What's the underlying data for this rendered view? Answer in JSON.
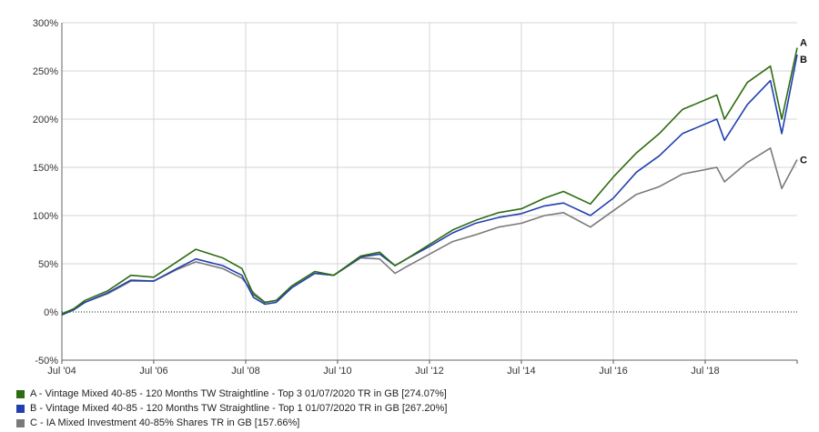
{
  "chart_data": {
    "type": "line",
    "title": "",
    "xlabel": "",
    "ylabel": "",
    "x_tick_labels": [
      "Jul '04",
      "Jul '06",
      "Jul '08",
      "Jul '10",
      "Jul '12",
      "Jul '14",
      "Jul '16",
      "Jul '18"
    ],
    "x_range": [
      "2004-07-01",
      "2020-07-01"
    ],
    "y_tick_labels": [
      "300%",
      "250%",
      "200%",
      "150%",
      "100%",
      "50%",
      "0%",
      "-50%"
    ],
    "ylim": [
      -50,
      300
    ],
    "grid": true,
    "zero_line": "dotted",
    "legend_position": "bottom-left",
    "series": [
      {
        "name": "A - Vintage Mixed 40-85 - 120 Months TW Straightline - Top 3 01/07/2020 TR in GB [274.07%]",
        "end_label": "A",
        "color": "#2e6b12",
        "points": [
          [
            "2004-07-01",
            -2
          ],
          [
            "2004-10-01",
            3
          ],
          [
            "2005-01-01",
            12
          ],
          [
            "2005-07-01",
            22
          ],
          [
            "2006-01-01",
            38
          ],
          [
            "2006-07-01",
            36
          ],
          [
            "2007-01-01",
            52
          ],
          [
            "2007-06-01",
            65
          ],
          [
            "2008-01-01",
            56
          ],
          [
            "2008-06-01",
            45
          ],
          [
            "2008-09-01",
            18
          ],
          [
            "2008-12-01",
            10
          ],
          [
            "2009-03-01",
            12
          ],
          [
            "2009-07-01",
            27
          ],
          [
            "2010-01-01",
            42
          ],
          [
            "2010-06-01",
            38
          ],
          [
            "2011-01-01",
            58
          ],
          [
            "2011-06-01",
            62
          ],
          [
            "2011-10-01",
            48
          ],
          [
            "2012-01-01",
            55
          ],
          [
            "2012-07-01",
            70
          ],
          [
            "2013-01-01",
            85
          ],
          [
            "2013-07-01",
            95
          ],
          [
            "2014-01-01",
            103
          ],
          [
            "2014-07-01",
            107
          ],
          [
            "2015-01-01",
            118
          ],
          [
            "2015-06-01",
            125
          ],
          [
            "2016-01-01",
            112
          ],
          [
            "2016-07-01",
            140
          ],
          [
            "2017-01-01",
            165
          ],
          [
            "2017-07-01",
            185
          ],
          [
            "2018-01-01",
            210
          ],
          [
            "2018-10-01",
            225
          ],
          [
            "2018-12-01",
            200
          ],
          [
            "2019-06-01",
            238
          ],
          [
            "2019-12-01",
            255
          ],
          [
            "2020-03-01",
            200
          ],
          [
            "2020-07-01",
            274
          ]
        ]
      },
      {
        "name": "B - Vintage Mixed 40-85 - 120 Months TW Straightline - Top 1 01/07/2020 TR in GB [267.20%]",
        "end_label": "B",
        "color": "#2040b0",
        "points": [
          [
            "2004-07-01",
            -3
          ],
          [
            "2004-10-01",
            2
          ],
          [
            "2005-01-01",
            10
          ],
          [
            "2005-07-01",
            20
          ],
          [
            "2006-01-01",
            33
          ],
          [
            "2006-07-01",
            32
          ],
          [
            "2007-01-01",
            45
          ],
          [
            "2007-06-01",
            55
          ],
          [
            "2008-01-01",
            48
          ],
          [
            "2008-06-01",
            38
          ],
          [
            "2008-09-01",
            15
          ],
          [
            "2008-12-01",
            8
          ],
          [
            "2009-03-01",
            10
          ],
          [
            "2009-07-01",
            25
          ],
          [
            "2010-01-01",
            40
          ],
          [
            "2010-06-01",
            38
          ],
          [
            "2011-01-01",
            57
          ],
          [
            "2011-06-01",
            60
          ],
          [
            "2011-10-01",
            48
          ],
          [
            "2012-01-01",
            55
          ],
          [
            "2012-07-01",
            68
          ],
          [
            "2013-01-01",
            82
          ],
          [
            "2013-07-01",
            92
          ],
          [
            "2014-01-01",
            98
          ],
          [
            "2014-07-01",
            102
          ],
          [
            "2015-01-01",
            110
          ],
          [
            "2015-06-01",
            113
          ],
          [
            "2016-01-01",
            100
          ],
          [
            "2016-07-01",
            118
          ],
          [
            "2017-01-01",
            145
          ],
          [
            "2017-07-01",
            162
          ],
          [
            "2018-01-01",
            185
          ],
          [
            "2018-10-01",
            200
          ],
          [
            "2018-12-01",
            178
          ],
          [
            "2019-06-01",
            215
          ],
          [
            "2019-12-01",
            240
          ],
          [
            "2020-03-01",
            185
          ],
          [
            "2020-07-01",
            267
          ]
        ]
      },
      {
        "name": "C - IA Mixed Investment 40-85% Shares TR in GB [157.66%]",
        "end_label": "C",
        "color": "#7a7a7a",
        "points": [
          [
            "2004-07-01",
            -2
          ],
          [
            "2004-10-01",
            3
          ],
          [
            "2005-01-01",
            10
          ],
          [
            "2005-07-01",
            19
          ],
          [
            "2006-01-01",
            32
          ],
          [
            "2006-07-01",
            32
          ],
          [
            "2007-01-01",
            44
          ],
          [
            "2007-06-01",
            52
          ],
          [
            "2008-01-01",
            45
          ],
          [
            "2008-06-01",
            35
          ],
          [
            "2008-09-01",
            20
          ],
          [
            "2008-12-01",
            10
          ],
          [
            "2009-03-01",
            12
          ],
          [
            "2009-07-01",
            25
          ],
          [
            "2010-01-01",
            40
          ],
          [
            "2010-06-01",
            38
          ],
          [
            "2011-01-01",
            56
          ],
          [
            "2011-06-01",
            55
          ],
          [
            "2011-10-01",
            40
          ],
          [
            "2012-01-01",
            47
          ],
          [
            "2012-07-01",
            60
          ],
          [
            "2013-01-01",
            73
          ],
          [
            "2013-07-01",
            80
          ],
          [
            "2014-01-01",
            88
          ],
          [
            "2014-07-01",
            92
          ],
          [
            "2015-01-01",
            100
          ],
          [
            "2015-06-01",
            103
          ],
          [
            "2016-01-01",
            88
          ],
          [
            "2016-07-01",
            105
          ],
          [
            "2017-01-01",
            122
          ],
          [
            "2017-07-01",
            130
          ],
          [
            "2018-01-01",
            143
          ],
          [
            "2018-10-01",
            150
          ],
          [
            "2018-12-01",
            135
          ],
          [
            "2019-06-01",
            155
          ],
          [
            "2019-12-01",
            170
          ],
          [
            "2020-03-01",
            128
          ],
          [
            "2020-07-01",
            158
          ]
        ]
      }
    ]
  }
}
